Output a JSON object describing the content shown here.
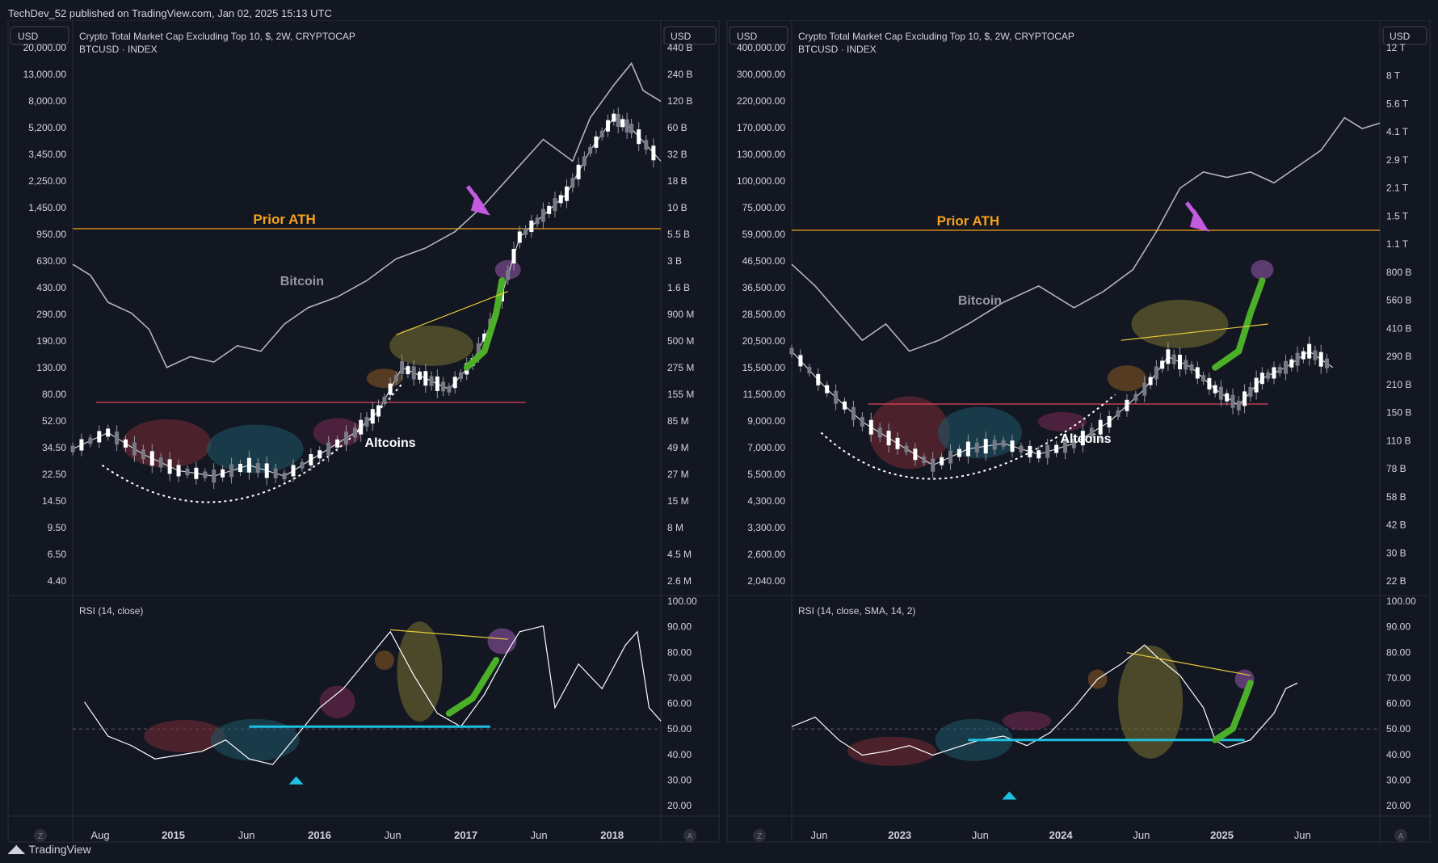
{
  "header": {
    "published": "TechDev_52 published on TradingView.com, Jan 02, 2025 15:13 UTC"
  },
  "footer": {
    "brand": "TradingView"
  },
  "colors": {
    "background": "#131722",
    "orange": "#f7a21b",
    "red_line": "#e0455a",
    "rsi_line": "#ffffff",
    "cyan": "#1ec0e0",
    "magenta_arrow": "#c45ae0",
    "candle_up": "#d1d4dc",
    "candle_down": "#ffffff"
  },
  "panels": [
    {
      "usd_left": "USD",
      "usd_right": "USD",
      "legend_line1": "Crypto Total Market Cap Excluding Top 10, $, 2W, CRYPTOCAP",
      "legend_line2": "BTCUSD · INDEX",
      "left_ticks": [
        "20,000.00",
        "13,000.00",
        "8,000.00",
        "5,200.00",
        "3,450.00",
        "2,250.00",
        "1,450.00",
        "950.00",
        "630.00",
        "430.00",
        "290.00",
        "190.00",
        "130.00",
        "80.00",
        "52.00",
        "34.50",
        "22.50",
        "14.50",
        "9.50",
        "6.50",
        "4.40"
      ],
      "right_ticks": [
        "440 B",
        "240 B",
        "120 B",
        "60 B",
        "32 B",
        "18 B",
        "10 B",
        "5.5 B",
        "3 B",
        "1.6 B",
        "900 M",
        "500 M",
        "275 M",
        "155 M",
        "85 M",
        "49 M",
        "27 M",
        "15 M",
        "8 M",
        "4.5 M",
        "2.6 M"
      ],
      "rsi_ticks": [
        "100.00",
        "90.00",
        "80.00",
        "70.00",
        "60.00",
        "50.00",
        "40.00",
        "30.00",
        "20.00"
      ],
      "rsi_legend": "RSI (14, close)",
      "x_ticks": [
        {
          "label": "Aug",
          "bold": false
        },
        {
          "label": "2015",
          "bold": true
        },
        {
          "label": "Jun",
          "bold": false
        },
        {
          "label": "2016",
          "bold": true
        },
        {
          "label": "Jun",
          "bold": false
        },
        {
          "label": "2017",
          "bold": true
        },
        {
          "label": "Jun",
          "bold": false
        },
        {
          "label": "2018",
          "bold": true
        }
      ],
      "zoom_label": "Z",
      "auto_label": "A",
      "annotations": {
        "prior_ath": "Prior ATH",
        "bitcoin": "Bitcoin",
        "altcoins": "Altcoins"
      }
    },
    {
      "usd_left": "USD",
      "usd_right": "USD",
      "legend_line1": "Crypto Total Market Cap Excluding Top 10, $, 2W, CRYPTOCAP",
      "legend_line2": "BTCUSD · INDEX",
      "left_ticks": [
        "400,000.00",
        "300,000.00",
        "220,000.00",
        "170,000.00",
        "130,000.00",
        "100,000.00",
        "75,000.00",
        "59,000.00",
        "46,500.00",
        "36,500.00",
        "28,500.00",
        "20,500.00",
        "15,500.00",
        "11,500.00",
        "9,000.00",
        "7,000.00",
        "5,500.00",
        "4,300.00",
        "3,300.00",
        "2,600.00",
        "2,040.00"
      ],
      "right_ticks": [
        "12 T",
        "8 T",
        "5.6 T",
        "4.1 T",
        "2.9 T",
        "2.1 T",
        "1.5 T",
        "1.1 T",
        "800 B",
        "560 B",
        "410 B",
        "290 B",
        "210 B",
        "150 B",
        "110 B",
        "78 B",
        "58 B",
        "42 B",
        "30 B",
        "22 B"
      ],
      "rsi_ticks": [
        "100.00",
        "90.00",
        "80.00",
        "70.00",
        "60.00",
        "50.00",
        "40.00",
        "30.00",
        "20.00"
      ],
      "rsi_legend": "RSI (14, close, SMA, 14, 2)",
      "x_ticks": [
        {
          "label": "Jun",
          "bold": false
        },
        {
          "label": "2023",
          "bold": true
        },
        {
          "label": "Jun",
          "bold": false
        },
        {
          "label": "2024",
          "bold": true
        },
        {
          "label": "Jun",
          "bold": false
        },
        {
          "label": "2025",
          "bold": true
        },
        {
          "label": "Jun",
          "bold": false
        }
      ],
      "zoom_label": "Z",
      "auto_label": "A",
      "annotations": {
        "prior_ath": "Prior ATH",
        "bitcoin": "Bitcoin",
        "altcoins": "Altcoins"
      }
    }
  ],
  "chart_data": [
    {
      "type": "line",
      "title": "Crypto Total Market Cap Excluding Top 10, $, 2W, CRYPTOCAP",
      "y_scale": "log",
      "ylim_left": [
        4.4,
        20000
      ],
      "ylim_right_label_range": [
        "2.6 M",
        "440 B"
      ],
      "x": [
        "2014-08",
        "2015-01",
        "2015-06",
        "2016-01",
        "2016-06",
        "2017-01",
        "2017-06",
        "2018-01"
      ],
      "series": [
        {
          "name": "Bitcoin",
          "values": [
            600,
            250,
            230,
            430,
            680,
            900,
            2500,
            14000
          ]
        },
        {
          "name": "Altcoins",
          "values": [
            45,
            40,
            38,
            33,
            90,
            120,
            900,
            5000
          ]
        }
      ],
      "prior_ath_level": 1200,
      "resistance_level": 80,
      "rsi": {
        "name": "RSI (14, close)",
        "ylim": [
          20,
          100
        ],
        "values": [
          62,
          52,
          45,
          48,
          42,
          58,
          95,
          58,
          88,
          60,
          97,
          55
        ]
      }
    },
    {
      "type": "line",
      "title": "Crypto Total Market Cap Excluding Top 10, $, 2W, CRYPTOCAP",
      "y_scale": "log",
      "ylim_left": [
        2040,
        400000
      ],
      "ylim_right_label_range": [
        "22 B",
        "12 T"
      ],
      "x": [
        "2022-06",
        "2023-01",
        "2023-06",
        "2024-01",
        "2024-06",
        "2025-01",
        "2025-06"
      ],
      "series": [
        {
          "name": "Bitcoin",
          "values": [
            30000,
            19000,
            27000,
            42000,
            67000,
            62000,
            97000
          ]
        },
        {
          "name": "Altcoins",
          "values": [
            20500,
            7500,
            9500,
            13000,
            22000,
            12000,
            24000
          ]
        }
      ],
      "prior_ath_level": 69000,
      "resistance_level": 11500,
      "rsi": {
        "name": "RSI (14, close, SMA, 14, 2)",
        "ylim": [
          20,
          100
        ],
        "values": [
          52,
          40,
          38,
          48,
          45,
          85,
          45,
          72,
          62
        ]
      }
    }
  ]
}
